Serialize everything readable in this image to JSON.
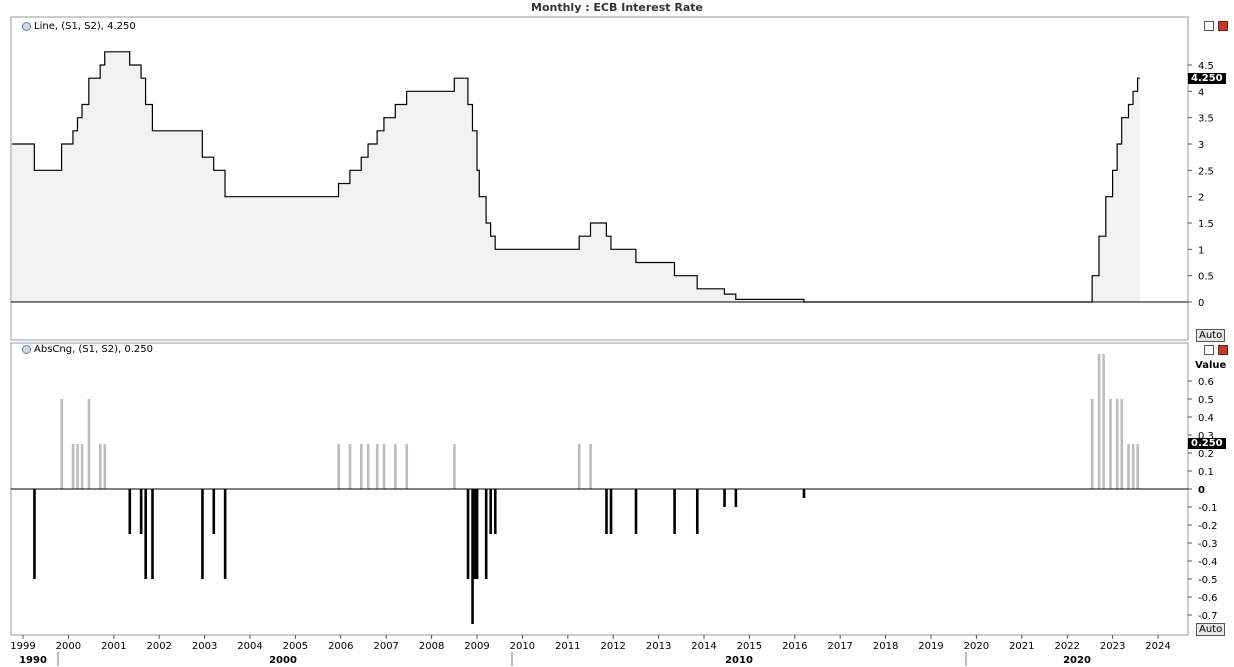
{
  "title": "Monthly : ECB Interest Rate",
  "colors": {
    "line": "#000000",
    "fill": "#f2f2f2",
    "pos_bar": "#bdbdbd",
    "neg_bar": "#000000",
    "grid": "#e4e4e4"
  },
  "top_panel": {
    "legend": "Line, (S1, S2), 4.250",
    "current_value": "4.250",
    "auto_label": "Auto",
    "y_ticks": [
      "0",
      "0.5",
      "1",
      "1.5",
      "2",
      "2.5",
      "3",
      "3.5",
      "4",
      "4.5"
    ]
  },
  "bottom_panel": {
    "legend": "AbsCng, (S1, S2), 0.250",
    "current_value": "0.250",
    "axis_word": "Value",
    "auto_label": "Auto",
    "y_ticks": [
      "-0.7",
      "-0.6",
      "-0.5",
      "-0.4",
      "-0.3",
      "-0.2",
      "-0.1",
      "0",
      "0.1",
      "0.2",
      "0.3",
      "0.4",
      "0.5",
      "0.6"
    ]
  },
  "x_axis": {
    "year_ticks": [
      "1999",
      "2000",
      "2001",
      "2002",
      "2003",
      "2004",
      "2005",
      "2006",
      "2007",
      "2008",
      "2009",
      "2010",
      "2011",
      "2012",
      "2013",
      "2014",
      "2015",
      "2016",
      "2017",
      "2018",
      "2019",
      "2020",
      "2021",
      "2022",
      "2023",
      "2024"
    ],
    "decade_labels": [
      "1990",
      "2000",
      "2010",
      "2020"
    ]
  },
  "chart_data": [
    {
      "type": "line",
      "title": "Monthly : ECB Interest Rate",
      "legend": "Line, (S1, S2), 4.250",
      "step": true,
      "area_fill": true,
      "x_unit": "date (year)",
      "points": [
        [
          1999.0,
          3.0
        ],
        [
          1999.25,
          2.5
        ],
        [
          1999.85,
          3.0
        ],
        [
          2000.1,
          3.25
        ],
        [
          2000.2,
          3.5
        ],
        [
          2000.3,
          3.75
        ],
        [
          2000.45,
          4.25
        ],
        [
          2000.7,
          4.5
        ],
        [
          2000.8,
          4.75
        ],
        [
          2001.35,
          4.5
        ],
        [
          2001.6,
          4.25
        ],
        [
          2001.7,
          3.75
        ],
        [
          2001.85,
          3.25
        ],
        [
          2002.95,
          2.75
        ],
        [
          2003.2,
          2.5
        ],
        [
          2003.45,
          2.0
        ],
        [
          2005.95,
          2.25
        ],
        [
          2006.2,
          2.5
        ],
        [
          2006.45,
          2.75
        ],
        [
          2006.6,
          3.0
        ],
        [
          2006.8,
          3.25
        ],
        [
          2006.95,
          3.5
        ],
        [
          2007.2,
          3.75
        ],
        [
          2007.45,
          4.0
        ],
        [
          2008.5,
          4.25
        ],
        [
          2008.8,
          3.75
        ],
        [
          2008.9,
          3.25
        ],
        [
          2009.0,
          2.5
        ],
        [
          2009.05,
          2.0
        ],
        [
          2009.2,
          1.5
        ],
        [
          2009.3,
          1.25
        ],
        [
          2009.4,
          1.0
        ],
        [
          2011.25,
          1.25
        ],
        [
          2011.5,
          1.5
        ],
        [
          2011.85,
          1.25
        ],
        [
          2011.95,
          1.0
        ],
        [
          2012.5,
          0.75
        ],
        [
          2013.35,
          0.5
        ],
        [
          2013.85,
          0.25
        ],
        [
          2014.45,
          0.15
        ],
        [
          2014.7,
          0.05
        ],
        [
          2016.2,
          0.0
        ],
        [
          2022.55,
          0.5
        ],
        [
          2022.7,
          1.25
        ],
        [
          2022.85,
          2.0
        ],
        [
          2023.0,
          2.5
        ],
        [
          2023.1,
          3.0
        ],
        [
          2023.2,
          3.5
        ],
        [
          2023.35,
          3.75
        ],
        [
          2023.45,
          4.0
        ],
        [
          2023.55,
          4.25
        ],
        [
          2023.6,
          4.25
        ]
      ],
      "ylim": [
        -0.7,
        5.0
      ],
      "xlim": [
        1998.75,
        2024.8
      ],
      "current_value": 4.25
    },
    {
      "type": "bar",
      "title": "",
      "legend": "AbsCng, (S1, S2), 0.250",
      "ylabel": "Value",
      "x_unit": "date (year)",
      "bars": [
        [
          1999.25,
          -0.5
        ],
        [
          1999.85,
          0.5
        ],
        [
          2000.1,
          0.25
        ],
        [
          2000.2,
          0.25
        ],
        [
          2000.3,
          0.25
        ],
        [
          2000.45,
          0.5
        ],
        [
          2000.7,
          0.25
        ],
        [
          2000.8,
          0.25
        ],
        [
          2001.35,
          -0.25
        ],
        [
          2001.6,
          -0.25
        ],
        [
          2001.7,
          -0.5
        ],
        [
          2001.85,
          -0.5
        ],
        [
          2002.95,
          -0.5
        ],
        [
          2003.2,
          -0.25
        ],
        [
          2003.45,
          -0.5
        ],
        [
          2005.95,
          0.25
        ],
        [
          2006.2,
          0.25
        ],
        [
          2006.45,
          0.25
        ],
        [
          2006.6,
          0.25
        ],
        [
          2006.8,
          0.25
        ],
        [
          2006.95,
          0.25
        ],
        [
          2007.2,
          0.25
        ],
        [
          2007.45,
          0.25
        ],
        [
          2008.5,
          0.25
        ],
        [
          2008.8,
          -0.5
        ],
        [
          2008.9,
          -0.75
        ],
        [
          2008.95,
          -0.5
        ],
        [
          2009.0,
          -0.5
        ],
        [
          2009.2,
          -0.5
        ],
        [
          2009.3,
          -0.25
        ],
        [
          2009.4,
          -0.25
        ],
        [
          2011.25,
          0.25
        ],
        [
          2011.5,
          0.25
        ],
        [
          2011.85,
          -0.25
        ],
        [
          2011.95,
          -0.25
        ],
        [
          2012.5,
          -0.25
        ],
        [
          2013.35,
          -0.25
        ],
        [
          2013.85,
          -0.25
        ],
        [
          2014.45,
          -0.1
        ],
        [
          2014.7,
          -0.1
        ],
        [
          2016.2,
          -0.05
        ],
        [
          2022.55,
          0.5
        ],
        [
          2022.7,
          0.75
        ],
        [
          2022.8,
          0.75
        ],
        [
          2022.95,
          0.5
        ],
        [
          2023.1,
          0.5
        ],
        [
          2023.2,
          0.5
        ],
        [
          2023.35,
          0.25
        ],
        [
          2023.45,
          0.25
        ],
        [
          2023.55,
          0.25
        ]
      ],
      "ylim": [
        -0.8,
        0.75
      ],
      "xlim": [
        1998.75,
        2024.8
      ],
      "current_value": 0.25
    }
  ]
}
